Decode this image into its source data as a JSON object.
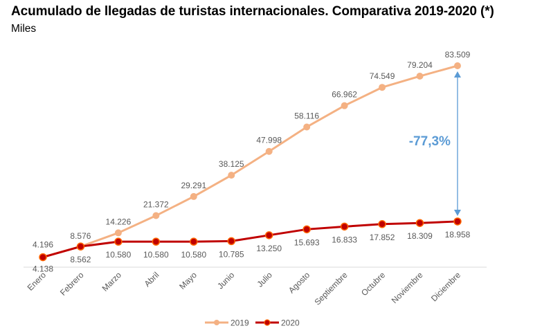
{
  "header": {
    "title": "Acumulado de llegadas de turistas internacionales. Comparativa 2019-2020 (*)",
    "subtitle": "Miles"
  },
  "chart_data": {
    "type": "line",
    "title": "Acumulado de llegadas de turistas internacionales. Comparativa 2019-2020 (*)",
    "subtitle": "Miles",
    "xlabel": "",
    "ylabel": "Miles",
    "categories": [
      "Enero",
      "Febrero",
      "Marzo",
      "Abril",
      "Mayo",
      "Junio",
      "Julio",
      "Agosto",
      "Septiembre",
      "Octubre",
      "Noviembre",
      "Diciembre"
    ],
    "series": [
      {
        "name": "2019",
        "color": "#f4b183",
        "values": [
          4.196,
          8.576,
          14.226,
          21.372,
          29.291,
          38.125,
          47.998,
          58.116,
          66.962,
          74.549,
          79.204,
          83.509
        ],
        "labels": [
          "4.196",
          "8.576",
          "14.226",
          "21.372",
          "29.291",
          "38.125",
          "47.998",
          "58.116",
          "66.962",
          "74.549",
          "79.204",
          "83.509"
        ]
      },
      {
        "name": "2020",
        "color": "#c00000",
        "marker_color": "#ff6600",
        "values": [
          4.138,
          8.562,
          10.58,
          10.58,
          10.58,
          10.785,
          13.25,
          15.693,
          16.833,
          17.852,
          18.309,
          18.958
        ],
        "labels": [
          "4.138",
          "8.562",
          "10.580",
          "10.580",
          "10.580",
          "10.785",
          "13.250",
          "15.693",
          "16.833",
          "17.852",
          "18.309",
          "18.958"
        ]
      }
    ],
    "ylim": [
      0,
      83.509
    ],
    "grid": false,
    "y_axis_visible": false,
    "legend": {
      "position": "bottom",
      "entries": [
        "2019",
        "2020"
      ]
    },
    "annotation": {
      "text": "-77,3%",
      "from_category": "Diciembre",
      "color": "#5b9bd5"
    }
  }
}
